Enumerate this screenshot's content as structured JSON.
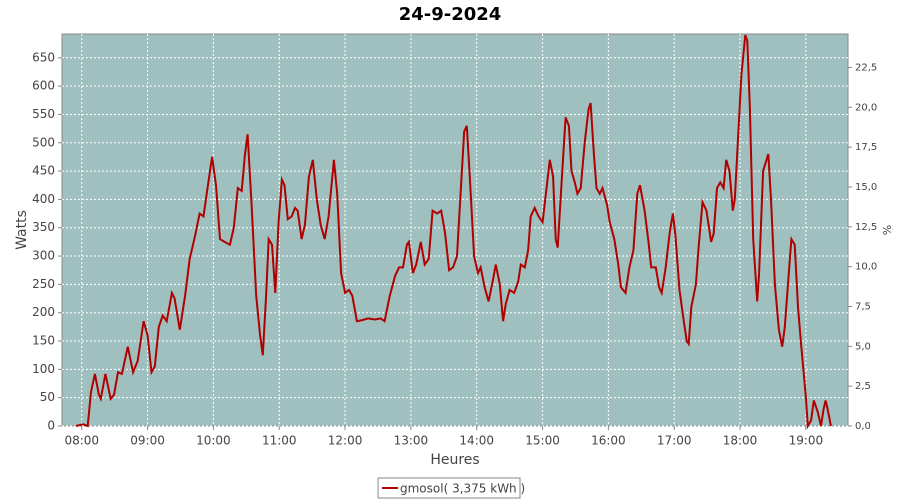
{
  "chart_data": {
    "type": "line",
    "title": "24-9-2024",
    "x_label": "Heures",
    "y_label": "Watts",
    "y2_label": "%",
    "x": [
      7.91,
      8.02,
      8.09,
      8.14,
      8.2,
      8.26,
      8.29,
      8.36,
      8.44,
      8.49,
      8.55,
      8.61,
      8.7,
      8.78,
      8.85,
      8.94,
      9.0,
      9.06,
      9.11,
      9.17,
      9.23,
      9.29,
      9.37,
      9.41,
      9.49,
      9.57,
      9.64,
      9.72,
      9.79,
      9.85,
      9.91,
      9.98,
      10.04,
      10.1,
      10.17,
      10.25,
      10.31,
      10.37,
      10.43,
      10.48,
      10.52,
      10.58,
      10.65,
      10.71,
      10.75,
      10.8,
      10.84,
      10.89,
      10.94,
      10.99,
      11.04,
      11.08,
      11.13,
      11.19,
      11.24,
      11.28,
      11.34,
      11.39,
      11.45,
      11.51,
      11.57,
      11.63,
      11.69,
      11.75,
      11.83,
      11.88,
      11.94,
      12.0,
      12.06,
      12.11,
      12.18,
      12.26,
      12.35,
      12.45,
      12.54,
      12.6,
      12.68,
      12.76,
      12.82,
      12.88,
      12.94,
      12.97,
      13.03,
      13.08,
      13.15,
      13.21,
      13.27,
      13.33,
      13.4,
      13.46,
      13.52,
      13.58,
      13.64,
      13.7,
      13.76,
      13.81,
      13.85,
      13.9,
      13.96,
      14.02,
      14.06,
      14.12,
      14.18,
      14.25,
      14.29,
      14.35,
      14.4,
      14.44,
      14.5,
      14.57,
      14.63,
      14.67,
      14.73,
      14.78,
      14.82,
      14.88,
      14.94,
      15.0,
      15.07,
      15.11,
      15.16,
      15.2,
      15.23,
      15.29,
      15.35,
      15.4,
      15.44,
      15.49,
      15.53,
      15.58,
      15.64,
      15.7,
      15.73,
      15.78,
      15.82,
      15.87,
      15.91,
      15.98,
      16.02,
      16.09,
      16.15,
      16.19,
      16.26,
      16.32,
      16.38,
      16.44,
      16.48,
      16.55,
      16.61,
      16.65,
      16.72,
      16.77,
      16.81,
      16.87,
      16.93,
      16.98,
      17.02,
      17.08,
      17.14,
      17.19,
      17.22,
      17.26,
      17.33,
      17.37,
      17.43,
      17.49,
      17.56,
      17.6,
      17.65,
      17.7,
      17.75,
      17.79,
      17.84,
      17.89,
      17.92,
      17.97,
      18.02,
      18.08,
      18.11,
      18.15,
      18.2,
      18.26,
      18.29,
      18.35,
      18.43,
      18.47,
      18.53,
      18.59,
      18.64,
      18.68,
      18.74,
      18.78,
      18.83,
      18.88,
      18.93,
      18.97,
      19.0,
      19.03,
      19.08,
      19.12,
      19.18,
      19.23,
      19.27,
      19.3,
      19.33,
      19.38
    ],
    "series": [
      {
        "name": "gmosol( 3,375 kWh )",
        "color": "#b00000",
        "values": [
          0,
          3,
          0,
          60,
          92,
          55,
          48,
          92,
          48,
          55,
          95,
          92,
          140,
          95,
          115,
          185,
          160,
          95,
          105,
          175,
          195,
          185,
          235,
          225,
          170,
          230,
          295,
          335,
          375,
          370,
          420,
          475,
          425,
          330,
          325,
          320,
          350,
          420,
          415,
          480,
          515,
          390,
          230,
          160,
          125,
          230,
          330,
          320,
          235,
          360,
          435,
          425,
          365,
          370,
          385,
          380,
          330,
          355,
          440,
          470,
          400,
          355,
          330,
          370,
          470,
          410,
          270,
          235,
          240,
          230,
          185,
          187,
          190,
          188,
          190,
          185,
          230,
          265,
          280,
          280,
          320,
          325,
          270,
          285,
          325,
          285,
          295,
          380,
          375,
          380,
          340,
          275,
          280,
          300,
          420,
          520,
          530,
          430,
          300,
          270,
          280,
          245,
          220,
          260,
          285,
          250,
          185,
          215,
          240,
          235,
          255,
          285,
          280,
          310,
          370,
          385,
          370,
          360,
          430,
          470,
          440,
          330,
          315,
          430,
          545,
          530,
          450,
          430,
          410,
          420,
          500,
          560,
          570,
          480,
          420,
          410,
          420,
          390,
          360,
          330,
          285,
          245,
          235,
          280,
          310,
          410,
          425,
          380,
          325,
          280,
          280,
          245,
          235,
          280,
          340,
          375,
          335,
          240,
          190,
          150,
          145,
          210,
          250,
          315,
          395,
          380,
          325,
          340,
          420,
          430,
          420,
          470,
          450,
          380,
          400,
          510,
          620,
          690,
          680,
          560,
          330,
          220,
          270,
          450,
          480,
          400,
          250,
          170,
          140,
          175,
          270,
          330,
          320,
          210,
          140,
          90,
          50,
          0,
          10,
          45,
          25,
          0,
          30,
          45,
          30,
          0
        ]
      }
    ],
    "xlim": [
      7.7,
      19.64
    ],
    "xticks": [
      {
        "value": 8,
        "label": "08:00"
      },
      {
        "value": 9,
        "label": "09:00"
      },
      {
        "value": 10,
        "label": "10:00"
      },
      {
        "value": 11,
        "label": "11:00"
      },
      {
        "value": 12,
        "label": "12:00"
      },
      {
        "value": 13,
        "label": "13:00"
      },
      {
        "value": 14,
        "label": "14:00"
      },
      {
        "value": 15,
        "label": "15:00"
      },
      {
        "value": 16,
        "label": "16:00"
      },
      {
        "value": 17,
        "label": "17:00"
      },
      {
        "value": 18,
        "label": "18:00"
      },
      {
        "value": 19,
        "label": "19:00"
      }
    ],
    "ylim": [
      0,
      692
    ],
    "yticks": [
      0,
      50,
      100,
      150,
      200,
      250,
      300,
      350,
      400,
      450,
      500,
      550,
      600,
      650
    ],
    "y2lim": [
      0,
      24.6
    ],
    "y2ticks": [
      {
        "value": 0,
        "label": "0,0"
      },
      {
        "value": 2.5,
        "label": "2,5"
      },
      {
        "value": 5,
        "label": "5,0"
      },
      {
        "value": 7.5,
        "label": "7,5"
      },
      {
        "value": 10,
        "label": "10,0"
      },
      {
        "value": 12.5,
        "label": "12,5"
      },
      {
        "value": 15,
        "label": "15,0"
      },
      {
        "value": 17.5,
        "label": "17,5"
      },
      {
        "value": 20,
        "label": "20,0"
      },
      {
        "value": 22.5,
        "label": "22,5"
      }
    ],
    "grid": true,
    "plot_background": "#a0c0c0"
  }
}
